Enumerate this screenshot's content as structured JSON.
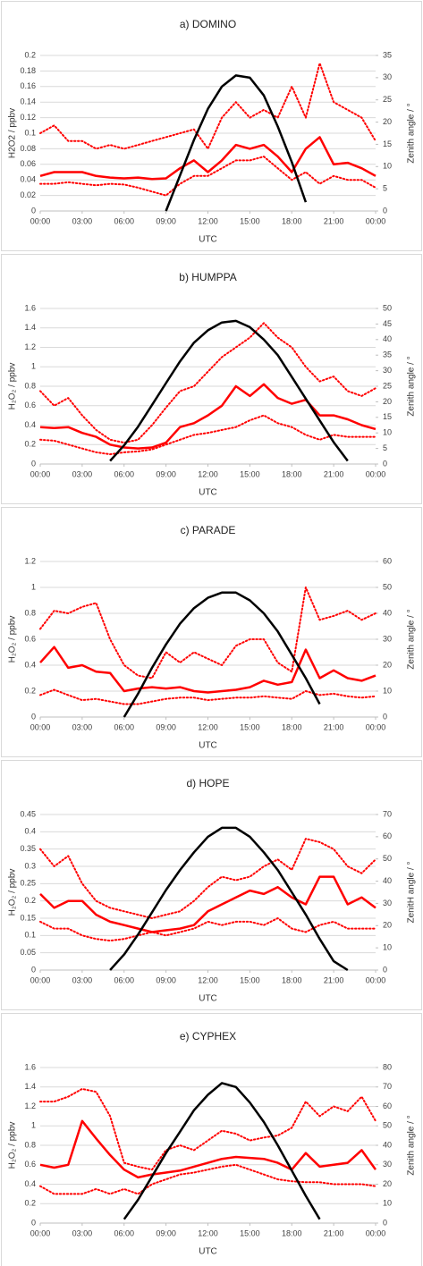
{
  "chart_data": [
    {
      "type": "line",
      "title": "a) DOMINO",
      "x_label": "UTC",
      "y_label": "H2O2 / ppbv",
      "y2_label": "Zenith angle / °",
      "x": [
        0,
        1,
        2,
        3,
        4,
        5,
        6,
        7,
        8,
        9,
        10,
        11,
        12,
        13,
        14,
        15,
        16,
        17,
        18,
        19,
        20,
        21,
        22,
        23,
        24
      ],
      "xlim": [
        0,
        24
      ],
      "xticks": [
        {
          "value": 0,
          "label": "00:00"
        },
        {
          "value": 3,
          "label": "03:00"
        },
        {
          "value": 6,
          "label": "06:00"
        },
        {
          "value": 9,
          "label": "09:00"
        },
        {
          "value": 12,
          "label": "12:00"
        },
        {
          "value": 15,
          "label": "15:00"
        },
        {
          "value": 18,
          "label": "18:00"
        },
        {
          "value": 21,
          "label": "21:00"
        },
        {
          "value": 24,
          "label": "00:00"
        }
      ],
      "ylim": [
        0,
        0.2
      ],
      "yticks": [
        0,
        0.02,
        0.04,
        0.06,
        0.08,
        0.1,
        0.12,
        0.14,
        0.16,
        0.18,
        0.2
      ],
      "y2lim": [
        0,
        35
      ],
      "y2ticks": [
        0,
        5,
        10,
        15,
        20,
        25,
        30,
        35
      ],
      "grid": true,
      "series": [
        {
          "color": "#ff0000",
          "style": "dotted",
          "values": [
            0.1,
            0.11,
            0.09,
            0.09,
            0.08,
            0.085,
            0.08,
            0.085,
            0.09,
            0.095,
            0.1,
            0.105,
            0.08,
            0.12,
            0.14,
            0.12,
            0.13,
            0.12,
            0.16,
            0.12,
            0.19,
            0.14,
            0.13,
            0.12,
            0.09
          ]
        },
        {
          "color": "#ff0000",
          "style": "solid",
          "values": [
            0.045,
            0.05,
            0.05,
            0.05,
            0.045,
            0.043,
            0.042,
            0.043,
            0.041,
            0.042,
            0.055,
            0.065,
            0.05,
            0.065,
            0.085,
            0.08,
            0.085,
            0.07,
            0.05,
            0.08,
            0.095,
            0.06,
            0.062,
            0.055,
            0.045
          ]
        },
        {
          "color": "#ff0000",
          "style": "dotted",
          "values": [
            0.035,
            0.035,
            0.037,
            0.035,
            0.033,
            0.035,
            0.034,
            0.03,
            0.025,
            0.02,
            0.035,
            0.045,
            0.045,
            0.055,
            0.065,
            0.065,
            0.07,
            0.055,
            0.04,
            0.05,
            0.035,
            0.045,
            0.04,
            0.04,
            0.03
          ]
        },
        {
          "color": "#000000",
          "style": "solid",
          "axis": "y2",
          "values": [
            null,
            null,
            null,
            null,
            null,
            null,
            null,
            null,
            null,
            0,
            8,
            16,
            23,
            28,
            30.5,
            30,
            26,
            19,
            11,
            2,
            null,
            null,
            null,
            null,
            null
          ]
        }
      ]
    },
    {
      "type": "line",
      "title": "b) HUMPPA",
      "x_label": "UTC",
      "y_label": "H₂O₂ / ppbv",
      "y2_label": "Zenith angle / °",
      "x": [
        0,
        1,
        2,
        3,
        4,
        5,
        6,
        7,
        8,
        9,
        10,
        11,
        12,
        13,
        14,
        15,
        16,
        17,
        18,
        19,
        20,
        21,
        22,
        23,
        24
      ],
      "xlim": [
        0,
        24
      ],
      "xticks": [
        {
          "value": 0,
          "label": "00:00"
        },
        {
          "value": 3,
          "label": "03:00"
        },
        {
          "value": 6,
          "label": "06:00"
        },
        {
          "value": 9,
          "label": "09:00"
        },
        {
          "value": 12,
          "label": "12:00"
        },
        {
          "value": 15,
          "label": "15:00"
        },
        {
          "value": 18,
          "label": "18:00"
        },
        {
          "value": 21,
          "label": "21:00"
        },
        {
          "value": 24,
          "label": "00:00"
        }
      ],
      "ylim": [
        0,
        1.6
      ],
      "yticks": [
        0,
        0.2,
        0.4,
        0.6,
        0.8,
        1,
        1.2,
        1.4,
        1.6
      ],
      "y2lim": [
        0,
        50
      ],
      "y2ticks": [
        0,
        5,
        10,
        15,
        20,
        25,
        30,
        35,
        40,
        45,
        50
      ],
      "grid": true,
      "series": [
        {
          "color": "#ff0000",
          "style": "dotted",
          "values": [
            0.75,
            0.6,
            0.68,
            0.5,
            0.35,
            0.25,
            0.22,
            0.25,
            0.4,
            0.58,
            0.75,
            0.8,
            0.95,
            1.1,
            1.2,
            1.3,
            1.45,
            1.3,
            1.2,
            1.0,
            0.85,
            0.9,
            0.75,
            0.7,
            0.78
          ]
        },
        {
          "color": "#ff0000",
          "style": "solid",
          "values": [
            0.38,
            0.37,
            0.38,
            0.32,
            0.28,
            0.2,
            0.17,
            0.16,
            0.17,
            0.22,
            0.38,
            0.42,
            0.5,
            0.6,
            0.8,
            0.7,
            0.82,
            0.68,
            0.62,
            0.66,
            0.5,
            0.5,
            0.46,
            0.4,
            0.36
          ]
        },
        {
          "color": "#ff0000",
          "style": "dotted",
          "values": [
            0.25,
            0.24,
            0.2,
            0.16,
            0.12,
            0.1,
            0.12,
            0.13,
            0.15,
            0.2,
            0.25,
            0.3,
            0.32,
            0.35,
            0.38,
            0.45,
            0.5,
            0.42,
            0.38,
            0.3,
            0.25,
            0.3,
            0.28,
            0.28,
            0.28
          ]
        },
        {
          "color": "#000000",
          "style": "solid",
          "axis": "y2",
          "values": [
            null,
            null,
            null,
            null,
            null,
            1,
            6,
            12,
            19,
            26,
            33,
            39,
            43,
            45.5,
            46,
            44,
            40,
            35,
            28,
            21,
            14,
            7,
            1,
            null,
            null
          ]
        }
      ]
    },
    {
      "type": "line",
      "title": "c) PARADE",
      "x_label": "UTC",
      "y_label": "H₂O₂ / ppbv",
      "y2_label": "Zenith angle / °",
      "x": [
        0,
        1,
        2,
        3,
        4,
        5,
        6,
        7,
        8,
        9,
        10,
        11,
        12,
        13,
        14,
        15,
        16,
        17,
        18,
        19,
        20,
        21,
        22,
        23,
        24
      ],
      "xlim": [
        0,
        24
      ],
      "xticks": [
        {
          "value": 0,
          "label": "00:00"
        },
        {
          "value": 3,
          "label": "03:00"
        },
        {
          "value": 6,
          "label": "06:00"
        },
        {
          "value": 9,
          "label": "09:00"
        },
        {
          "value": 12,
          "label": "12:00"
        },
        {
          "value": 15,
          "label": "15:00"
        },
        {
          "value": 18,
          "label": "18:00"
        },
        {
          "value": 21,
          "label": "21:00"
        },
        {
          "value": 24,
          "label": "00:00"
        }
      ],
      "ylim": [
        0,
        1.2
      ],
      "yticks": [
        0,
        0.2,
        0.4,
        0.6,
        0.8,
        1,
        1.2
      ],
      "y2lim": [
        0,
        60
      ],
      "y2ticks": [
        0,
        10,
        20,
        30,
        40,
        50,
        60
      ],
      "grid": true,
      "series": [
        {
          "color": "#ff0000",
          "style": "dotted",
          "values": [
            0.68,
            0.82,
            0.8,
            0.85,
            0.88,
            0.6,
            0.4,
            0.32,
            0.3,
            0.5,
            0.42,
            0.5,
            0.45,
            0.4,
            0.55,
            0.6,
            0.6,
            0.42,
            0.35,
            1.0,
            0.75,
            0.78,
            0.82,
            0.75,
            0.8
          ]
        },
        {
          "color": "#ff0000",
          "style": "solid",
          "values": [
            0.42,
            0.54,
            0.38,
            0.4,
            0.35,
            0.34,
            0.2,
            0.22,
            0.23,
            0.22,
            0.23,
            0.2,
            0.19,
            0.2,
            0.21,
            0.23,
            0.28,
            0.25,
            0.27,
            0.52,
            0.3,
            0.36,
            0.3,
            0.28,
            0.32
          ]
        },
        {
          "color": "#ff0000",
          "style": "dotted",
          "values": [
            0.17,
            0.21,
            0.17,
            0.13,
            0.14,
            0.12,
            0.1,
            0.1,
            0.12,
            0.14,
            0.15,
            0.15,
            0.13,
            0.14,
            0.15,
            0.15,
            0.16,
            0.15,
            0.14,
            0.2,
            0.17,
            0.18,
            0.16,
            0.15,
            0.16
          ]
        },
        {
          "color": "#000000",
          "style": "solid",
          "axis": "y2",
          "values": [
            null,
            null,
            null,
            null,
            null,
            null,
            0,
            9,
            19,
            28,
            36,
            42,
            46,
            48,
            48,
            45,
            40,
            33,
            24,
            15,
            5,
            null,
            null,
            null,
            null
          ]
        }
      ]
    },
    {
      "type": "line",
      "title": "d) HOPE",
      "x_label": "UTC",
      "y_label": "H₂O₂ / ppbv",
      "y2_label": "ZenitH angle / °",
      "x": [
        0,
        1,
        2,
        3,
        4,
        5,
        6,
        7,
        8,
        9,
        10,
        11,
        12,
        13,
        14,
        15,
        16,
        17,
        18,
        19,
        20,
        21,
        22,
        23,
        24
      ],
      "xlim": [
        0,
        24
      ],
      "xticks": [
        {
          "value": 0,
          "label": "00:00"
        },
        {
          "value": 3,
          "label": "03:00"
        },
        {
          "value": 6,
          "label": "06:00"
        },
        {
          "value": 9,
          "label": "09:00"
        },
        {
          "value": 12,
          "label": "12:00"
        },
        {
          "value": 15,
          "label": "15:00"
        },
        {
          "value": 18,
          "label": "18:00"
        },
        {
          "value": 21,
          "label": "21:00"
        },
        {
          "value": 24,
          "label": "00:00"
        }
      ],
      "ylim": [
        0,
        0.45
      ],
      "yticks": [
        0,
        0.05,
        0.1,
        0.15,
        0.2,
        0.25,
        0.3,
        0.35,
        0.4,
        0.45
      ],
      "y2lim": [
        0,
        70
      ],
      "y2ticks": [
        0,
        10,
        20,
        30,
        40,
        50,
        60,
        70
      ],
      "grid": true,
      "series": [
        {
          "color": "#ff0000",
          "style": "dotted",
          "values": [
            0.35,
            0.3,
            0.33,
            0.25,
            0.2,
            0.18,
            0.17,
            0.16,
            0.15,
            0.16,
            0.17,
            0.2,
            0.24,
            0.27,
            0.26,
            0.27,
            0.3,
            0.32,
            0.29,
            0.38,
            0.37,
            0.35,
            0.3,
            0.28,
            0.32
          ]
        },
        {
          "color": "#ff0000",
          "style": "solid",
          "values": [
            0.22,
            0.18,
            0.2,
            0.2,
            0.16,
            0.14,
            0.13,
            0.12,
            0.11,
            0.115,
            0.12,
            0.13,
            0.17,
            0.19,
            0.21,
            0.23,
            0.22,
            0.24,
            0.21,
            0.19,
            0.27,
            0.27,
            0.19,
            0.21,
            0.18
          ]
        },
        {
          "color": "#ff0000",
          "style": "dotted",
          "values": [
            0.14,
            0.12,
            0.12,
            0.1,
            0.09,
            0.085,
            0.09,
            0.1,
            0.11,
            0.1,
            0.11,
            0.12,
            0.14,
            0.13,
            0.14,
            0.14,
            0.13,
            0.15,
            0.12,
            0.11,
            0.13,
            0.14,
            0.12,
            0.12,
            0.12
          ]
        },
        {
          "color": "#000000",
          "style": "solid",
          "axis": "y2",
          "values": [
            null,
            null,
            null,
            null,
            null,
            0,
            7,
            16,
            26,
            36,
            45,
            53,
            60,
            64,
            64,
            60,
            53,
            45,
            35,
            25,
            14,
            4,
            0,
            null,
            null
          ]
        }
      ]
    },
    {
      "type": "line",
      "title": "e) CYPHEX",
      "x_label": "UTC",
      "y_label": "H₂O₂ / ppbv",
      "y2_label": "Zenith angle / °",
      "x": [
        0,
        1,
        2,
        3,
        4,
        5,
        6,
        7,
        8,
        9,
        10,
        11,
        12,
        13,
        14,
        15,
        16,
        17,
        18,
        19,
        20,
        21,
        22,
        23,
        24
      ],
      "xlim": [
        0,
        24
      ],
      "xticks": [
        {
          "value": 0,
          "label": "00:00"
        },
        {
          "value": 3,
          "label": "03:00"
        },
        {
          "value": 6,
          "label": "06:00"
        },
        {
          "value": 9,
          "label": "09:00"
        },
        {
          "value": 12,
          "label": "12:00"
        },
        {
          "value": 15,
          "label": "15:00"
        },
        {
          "value": 18,
          "label": "18:00"
        },
        {
          "value": 21,
          "label": "21:00"
        },
        {
          "value": 24,
          "label": "00:00"
        }
      ],
      "ylim": [
        0,
        1.6
      ],
      "yticks": [
        0,
        0.2,
        0.4,
        0.6,
        0.8,
        1,
        1.2,
        1.4,
        1.6
      ],
      "y2lim": [
        0,
        80
      ],
      "y2ticks": [
        0,
        10,
        20,
        30,
        40,
        50,
        60,
        70,
        80
      ],
      "grid": true,
      "series": [
        {
          "color": "#ff0000",
          "style": "dotted",
          "values": [
            1.25,
            1.25,
            1.3,
            1.38,
            1.35,
            1.1,
            0.62,
            0.58,
            0.55,
            0.75,
            0.8,
            0.75,
            0.85,
            0.95,
            0.92,
            0.85,
            0.88,
            0.9,
            0.98,
            1.25,
            1.1,
            1.2,
            1.15,
            1.3,
            1.05
          ]
        },
        {
          "color": "#ff0000",
          "style": "solid",
          "values": [
            0.6,
            0.57,
            0.6,
            1.05,
            0.87,
            0.7,
            0.55,
            0.47,
            0.5,
            0.52,
            0.54,
            0.58,
            0.62,
            0.66,
            0.68,
            0.67,
            0.66,
            0.62,
            0.55,
            0.72,
            0.58,
            0.6,
            0.62,
            0.75,
            0.55
          ]
        },
        {
          "color": "#ff0000",
          "style": "dotted",
          "values": [
            0.38,
            0.3,
            0.3,
            0.3,
            0.35,
            0.3,
            0.35,
            0.3,
            0.4,
            0.45,
            0.5,
            0.52,
            0.55,
            0.58,
            0.6,
            0.55,
            0.5,
            0.45,
            0.43,
            0.42,
            0.42,
            0.4,
            0.4,
            0.4,
            0.38
          ]
        },
        {
          "color": "#000000",
          "style": "solid",
          "axis": "y2",
          "values": [
            null,
            null,
            null,
            null,
            null,
            null,
            2,
            12,
            24,
            36,
            47,
            58,
            66,
            72,
            70,
            62,
            52,
            40,
            27,
            14,
            2,
            null,
            null,
            null,
            null
          ]
        }
      ]
    }
  ]
}
